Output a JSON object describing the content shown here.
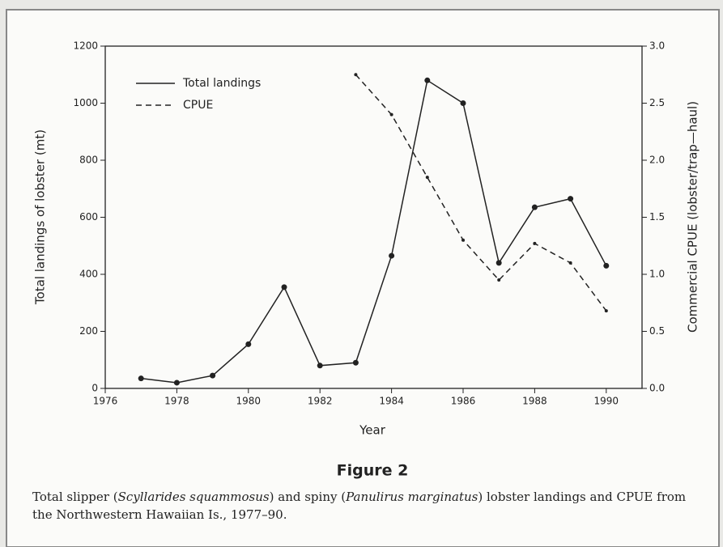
{
  "chart_data": {
    "type": "line",
    "x": [
      1977,
      1978,
      1979,
      1980,
      1981,
      1982,
      1983,
      1984,
      1985,
      1986,
      1987,
      1988,
      1989,
      1990
    ],
    "series": [
      {
        "name": "Total landings",
        "color": "#222222",
        "dash": "solid",
        "values": [
          35,
          20,
          45,
          155,
          355,
          80,
          90,
          465,
          1080,
          1000,
          440,
          635,
          665,
          430
        ]
      },
      {
        "name": "CPUE",
        "color": "#222222",
        "dash": "dashed",
        "axis": "y2",
        "values": [
          null,
          null,
          null,
          null,
          null,
          null,
          2.75,
          2.4,
          1.85,
          1.3,
          0.95,
          1.27,
          1.1,
          0.68
        ]
      }
    ],
    "xlabel": "Year",
    "ylabel": "Total landings of lobster (mt)",
    "y2label": "Commercial CPUE (lobster/trap—haul)",
    "xlim": [
      1976,
      1991
    ],
    "xticks": [
      1976,
      1978,
      1980,
      1982,
      1984,
      1986,
      1988,
      1990
    ],
    "ylim": [
      0,
      1200
    ],
    "yticks": [
      0,
      200,
      400,
      600,
      800,
      1000,
      1200
    ],
    "y2lim": [
      0,
      3
    ],
    "y2ticks": [
      {
        "value": 0,
        "label": "0.0"
      },
      0.5,
      {
        "value": 1,
        "label": "1.0"
      },
      1.5,
      {
        "value": 2,
        "label": "2.0"
      },
      2.5,
      {
        "value": 3,
        "label": "3.0"
      }
    ],
    "legend": "upper left",
    "title": "Figure 2",
    "caption": [
      "Total slipper (",
      "Scyllarides squammosus",
      ") and spiny (",
      "Panulirus marginatus",
      ") lobster landings and CPUE from the Northwestern Hawaiian Is., 1977–90."
    ]
  }
}
